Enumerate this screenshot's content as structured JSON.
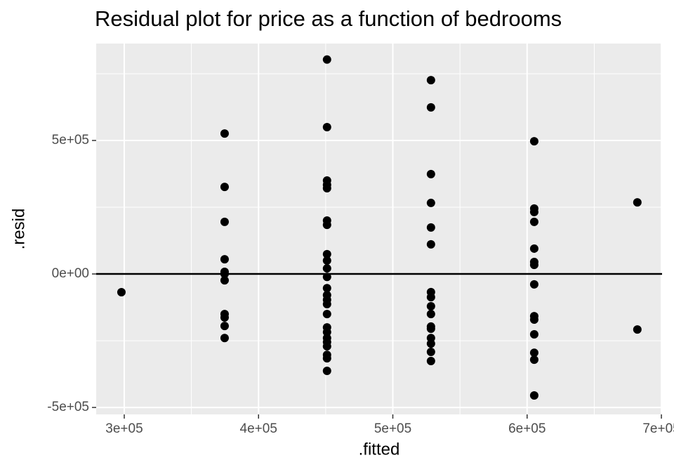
{
  "chart_data": {
    "type": "scatter",
    "title": "Residual plot for price as a function of bedrooms",
    "x_label": ".fitted",
    "y_label": ".resid",
    "xlim": [
      279100,
      700500
    ],
    "ylim": [
      -526000,
      863000
    ],
    "xticks": [
      {
        "value": 300000,
        "label": "3e+05"
      },
      {
        "value": 400000,
        "label": "4e+05"
      },
      {
        "value": 500000,
        "label": "5e+05"
      },
      {
        "value": 600000,
        "label": "6e+05"
      },
      {
        "value": 700000,
        "label": "7e+05"
      }
    ],
    "yticks": [
      {
        "value": -500000,
        "label": "-5e+05"
      },
      {
        "value": 0,
        "label": "0e+00"
      },
      {
        "value": 500000,
        "label": "5e+05"
      }
    ],
    "x_minor_ticks": [
      350000,
      450000,
      550000,
      650000
    ],
    "y_minor_ticks": [
      -250000,
      250000,
      750000
    ],
    "hline": 0,
    "grid": true,
    "color": "#000000",
    "panel_color": "#ebebeb",
    "series": [
      {
        "name": "residuals",
        "color": "#000000",
        "x": [
          297900,
          374750,
          374750,
          374750,
          374750,
          374750,
          374750,
          374750,
          374750,
          374750,
          374750,
          374750,
          451000,
          451000,
          451000,
          451000,
          451000,
          451000,
          451000,
          451000,
          451000,
          451000,
          451000,
          451000,
          451000,
          451000,
          451000,
          451000,
          451000,
          451000,
          451000,
          451000,
          451000,
          451000,
          451000,
          451000,
          528400,
          528400,
          528400,
          528400,
          528400,
          528400,
          528400,
          528400,
          528400,
          528400,
          528400,
          528400,
          528400,
          528400,
          528400,
          528400,
          605300,
          605300,
          605300,
          605300,
          605300,
          605300,
          605300,
          605300,
          605300,
          605300,
          605300,
          605300,
          605300,
          605300,
          682100,
          682100
        ],
        "values": [
          -68400,
          526000,
          326000,
          195000,
          55000,
          8000,
          0,
          -24000,
          -150000,
          -163000,
          -195000,
          -240000,
          803000,
          550000,
          350000,
          334000,
          321000,
          200000,
          184000,
          74000,
          50000,
          21000,
          -11000,
          -53000,
          -79000,
          -97000,
          -113000,
          -150000,
          -200000,
          -218000,
          -240000,
          -255000,
          -271000,
          -303000,
          -316000,
          -363000,
          726000,
          624000,
          374000,
          266000,
          174000,
          111000,
          -68000,
          -87000,
          -121000,
          -150000,
          -197000,
          -205000,
          -240000,
          -261000,
          -292000,
          -326000,
          497000,
          245000,
          232000,
          195000,
          95000,
          45000,
          34000,
          -39000,
          -158000,
          -171000,
          -226000,
          -295000,
          -321000,
          -455000,
          268000,
          -208000
        ]
      }
    ]
  }
}
